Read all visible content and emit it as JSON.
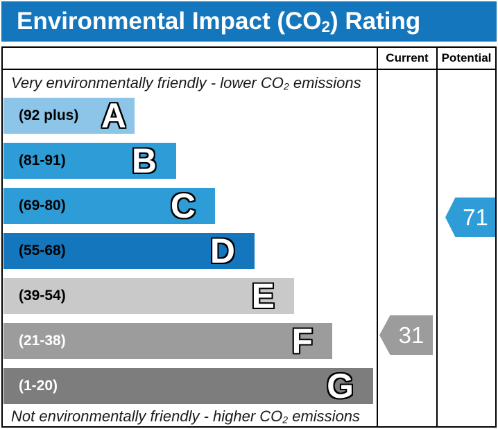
{
  "title": {
    "prefix": "Environmental Impact (CO",
    "sub": "2",
    "suffix": ") Rating"
  },
  "header": {
    "current": "Current",
    "potential": "Potential"
  },
  "captions": {
    "top": {
      "prefix": "Very environmentally friendly - lower CO",
      "sub": "2",
      "suffix": " emissions"
    },
    "bottom": {
      "prefix": "Not environmentally friendly - higher CO",
      "sub": "2",
      "suffix": " emissions"
    }
  },
  "colors": {
    "title_bar": "#1476bc",
    "border": "#000000"
  },
  "chart_data": {
    "type": "bar",
    "title": "Environmental Impact (CO2) Rating",
    "columns": [
      "Current",
      "Potential"
    ],
    "bands": [
      {
        "letter": "A",
        "range": "(92 plus)",
        "min": 92,
        "max": 100,
        "color": "#8cc5e8"
      },
      {
        "letter": "B",
        "range": "(81-91)",
        "min": 81,
        "max": 91,
        "color": "#2e9cd7"
      },
      {
        "letter": "C",
        "range": "(69-80)",
        "min": 69,
        "max": 80,
        "color": "#2e9cd7"
      },
      {
        "letter": "D",
        "range": "(55-68)",
        "min": 55,
        "max": 68,
        "color": "#1476bc"
      },
      {
        "letter": "E",
        "range": "(39-54)",
        "min": 39,
        "max": 54,
        "color": "#c9c9c9"
      },
      {
        "letter": "F",
        "range": "(21-38)",
        "min": 21,
        "max": 38,
        "color": "#9c9c9c"
      },
      {
        "letter": "G",
        "range": "(1-20)",
        "min": 1,
        "max": 20,
        "color": "#7d7d7d"
      }
    ],
    "current": {
      "value": 31,
      "band": "F",
      "color": "#9c9c9c"
    },
    "potential": {
      "value": 71,
      "band": "C",
      "color": "#2e9cd7"
    }
  }
}
